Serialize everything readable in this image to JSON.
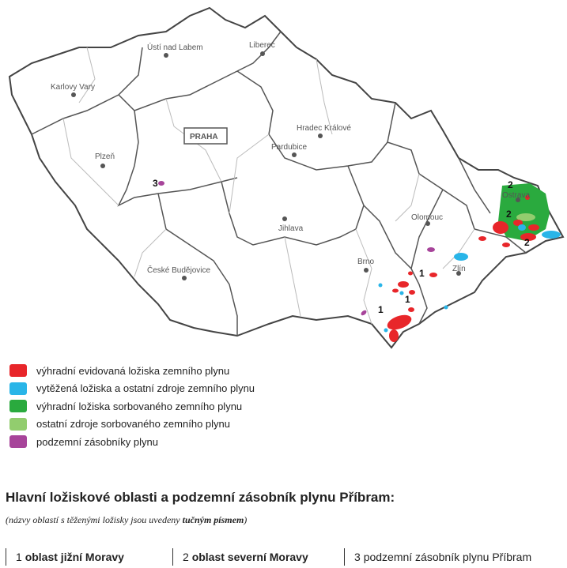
{
  "map": {
    "cities": [
      "Ústí nad Labem",
      "Liberec",
      "Karlovy Vary",
      "PRAHA",
      "Hradec Králové",
      "Pardubice",
      "Plzeň",
      "Jihlava",
      "Olomouc",
      "Brno",
      "Zlín",
      "České Budějovice",
      "Ostrava"
    ],
    "area_markers": [
      "1",
      "2",
      "3"
    ],
    "colors": {
      "border": "#444444",
      "region_line": "#bbbbbb",
      "reserved": "#e8262a",
      "mined": "#29b5e8",
      "sorbed_reserved": "#2aaa3e",
      "sorbed_other": "#8fd16a",
      "storage": "#a7449a"
    }
  },
  "legend": [
    {
      "label": "výhradní evidovaná ložiska zemního plynu",
      "color": "#e8262a"
    },
    {
      "label": "vytěžená ložiska a ostatní zdroje zemního plynu",
      "color": "#29b5e8"
    },
    {
      "label": "výhradní ložiska sorbovaného zemního plynu",
      "color": "#2aaa3e"
    },
    {
      "label": "ostatní zdroje sorbovaného zemního plynu",
      "color": "#92cd6e"
    },
    {
      "label": "podzemní zásobníky plynu",
      "color": "#a7449a"
    }
  ],
  "heading": "Hlavní ložiskové oblasti a podzemní zásobník plynu Příbram:",
  "note": {
    "prefix": "(názvy oblastí s těženými ložisky jsou uvedeny ",
    "bold": "tučným písmem",
    "suffix": ")"
  },
  "areas": [
    {
      "num": "1",
      "name": "oblast jižní Moravy",
      "bold": true
    },
    {
      "num": "2",
      "name": "oblast severní Moravy",
      "bold": true
    },
    {
      "num": "3",
      "name": "podzemní zásobník plynu Příbram",
      "bold": false
    }
  ]
}
